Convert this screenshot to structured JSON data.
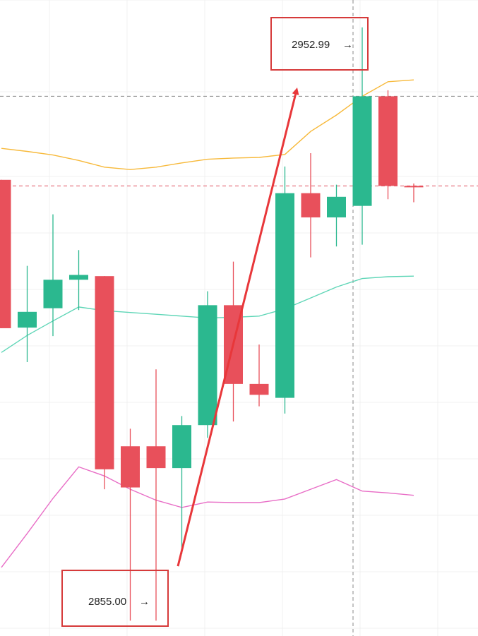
{
  "chart_data": {
    "type": "candlestick",
    "title": "",
    "xlabel": "",
    "ylabel": "",
    "ylim": [
      2852.47,
      2957.5
    ],
    "grid": true,
    "candles": [
      {
        "open": 2927.8,
        "high": 2927.8,
        "low": 2903.3,
        "close": 2903.3
      },
      {
        "open": 2903.4,
        "high": 2913.6,
        "low": 2897.7,
        "close": 2906.0
      },
      {
        "open": 2906.6,
        "high": 2922.1,
        "low": 2902.0,
        "close": 2911.3
      },
      {
        "open": 2911.3,
        "high": 2916.2,
        "low": 2906.3,
        "close": 2912.1
      },
      {
        "open": 2911.9,
        "high": 2911.9,
        "low": 2876.7,
        "close": 2880.0
      },
      {
        "open": 2883.8,
        "high": 2886.7,
        "low": 2855.0,
        "close": 2877.0
      },
      {
        "open": 2883.8,
        "high": 2896.5,
        "low": 2855.0,
        "close": 2880.2
      },
      {
        "open": 2880.2,
        "high": 2888.8,
        "low": 2866.0,
        "close": 2887.3
      },
      {
        "open": 2887.3,
        "high": 2909.4,
        "low": 2885.2,
        "close": 2907.1
      },
      {
        "open": 2907.1,
        "high": 2914.3,
        "low": 2887.9,
        "close": 2894.1
      },
      {
        "open": 2894.1,
        "high": 2900.6,
        "low": 2890.4,
        "close": 2892.3
      },
      {
        "open": 2891.8,
        "high": 2930.0,
        "low": 2889.2,
        "close": 2925.6
      },
      {
        "open": 2925.6,
        "high": 2932.2,
        "low": 2915.0,
        "close": 2921.6
      },
      {
        "open": 2921.6,
        "high": 2927.0,
        "low": 2916.8,
        "close": 2925.0
      },
      {
        "open": 2923.5,
        "high": 2952.99,
        "low": 2917.1,
        "close": 2941.6
      },
      {
        "open": 2941.6,
        "high": 2942.6,
        "low": 2924.6,
        "close": 2926.8
      },
      {
        "open": 2926.8,
        "high": 2927.2,
        "low": 2924.1,
        "close": 2926.6
      }
    ],
    "series": [
      {
        "type": "line",
        "color": "#f7b93a",
        "values": [
          2933.0,
          2932.5,
          2931.9,
          2931.0,
          2929.9,
          2929.5,
          2929.9,
          2930.6,
          2931.2,
          2931.4,
          2931.5,
          2932.0,
          2935.8,
          2938.5,
          2941.6,
          2944.0,
          2944.3
        ]
      },
      {
        "type": "line",
        "color": "#5fd6b7",
        "values": [
          2899.3,
          2902.1,
          2904.5,
          2906.8,
          2906.2,
          2905.9,
          2905.6,
          2905.3,
          2905.0,
          2905.1,
          2905.3,
          2906.5,
          2908.3,
          2910.1,
          2911.5,
          2911.8,
          2911.9
        ]
      },
      {
        "type": "line",
        "color": "#e86dc6",
        "values": [
          2863.8,
          2869.4,
          2875.2,
          2880.4,
          2878.9,
          2876.7,
          2874.9,
          2873.7,
          2874.6,
          2874.5,
          2874.5,
          2875.1,
          2876.7,
          2878.3,
          2876.4,
          2876.1,
          2875.7
        ]
      }
    ],
    "horizontal_lines": [
      {
        "value": 2941.6,
        "color": "#888888",
        "style": "dashed"
      },
      {
        "value": 2926.8,
        "color": "#e05060",
        "style": "dashed"
      }
    ],
    "annotations": [
      {
        "text": "2952.99",
        "arrow": "→",
        "value": 2952.99
      },
      {
        "text": "2855.00",
        "arrow": "→",
        "value": 2855.0
      }
    ],
    "trend_arrow": {
      "color": "#e8373a",
      "from_value": 2864.0,
      "to_value": 2942.6
    }
  }
}
